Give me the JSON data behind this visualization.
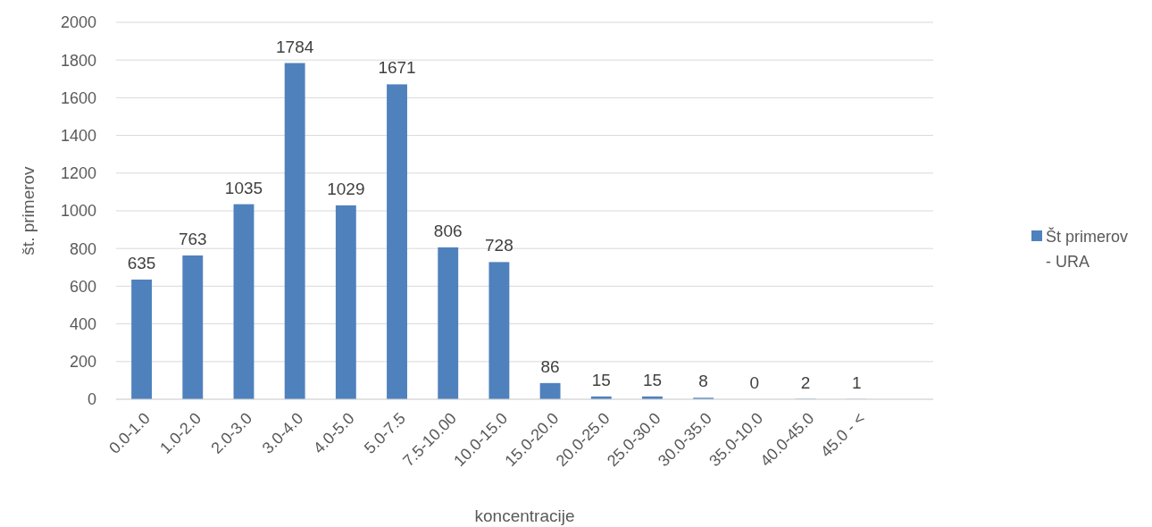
{
  "chart_data": {
    "type": "bar",
    "xlabel": "koncentracije",
    "ylabel": "št. primerov",
    "categories": [
      "0.0-1.0",
      "1.0-2.0",
      "2.0-3.0",
      "3.0-4.0",
      "4.0-5.0",
      "5.0-7.5",
      "7.5-10.00",
      "10.0-15.0",
      "15.0-20.0",
      "20.0-25.0",
      "25.0-30.0",
      "30.0-35.0",
      "35.0-10.0",
      "40.0-45.0",
      "45.0 - <",
      null
    ],
    "series": [
      {
        "name": "Št primerov - URA",
        "color": "#4f81bd",
        "values": [
          635,
          763,
          1035,
          1784,
          1029,
          1671,
          806,
          728,
          86,
          15,
          15,
          8,
          0,
          2,
          1,
          null
        ]
      }
    ],
    "ylim": [
      0,
      2000
    ],
    "yticks": [
      0,
      200,
      400,
      600,
      800,
      1000,
      1200,
      1400,
      1600,
      1800,
      2000
    ],
    "grid": "y",
    "legend": "right",
    "data_labels": true
  }
}
